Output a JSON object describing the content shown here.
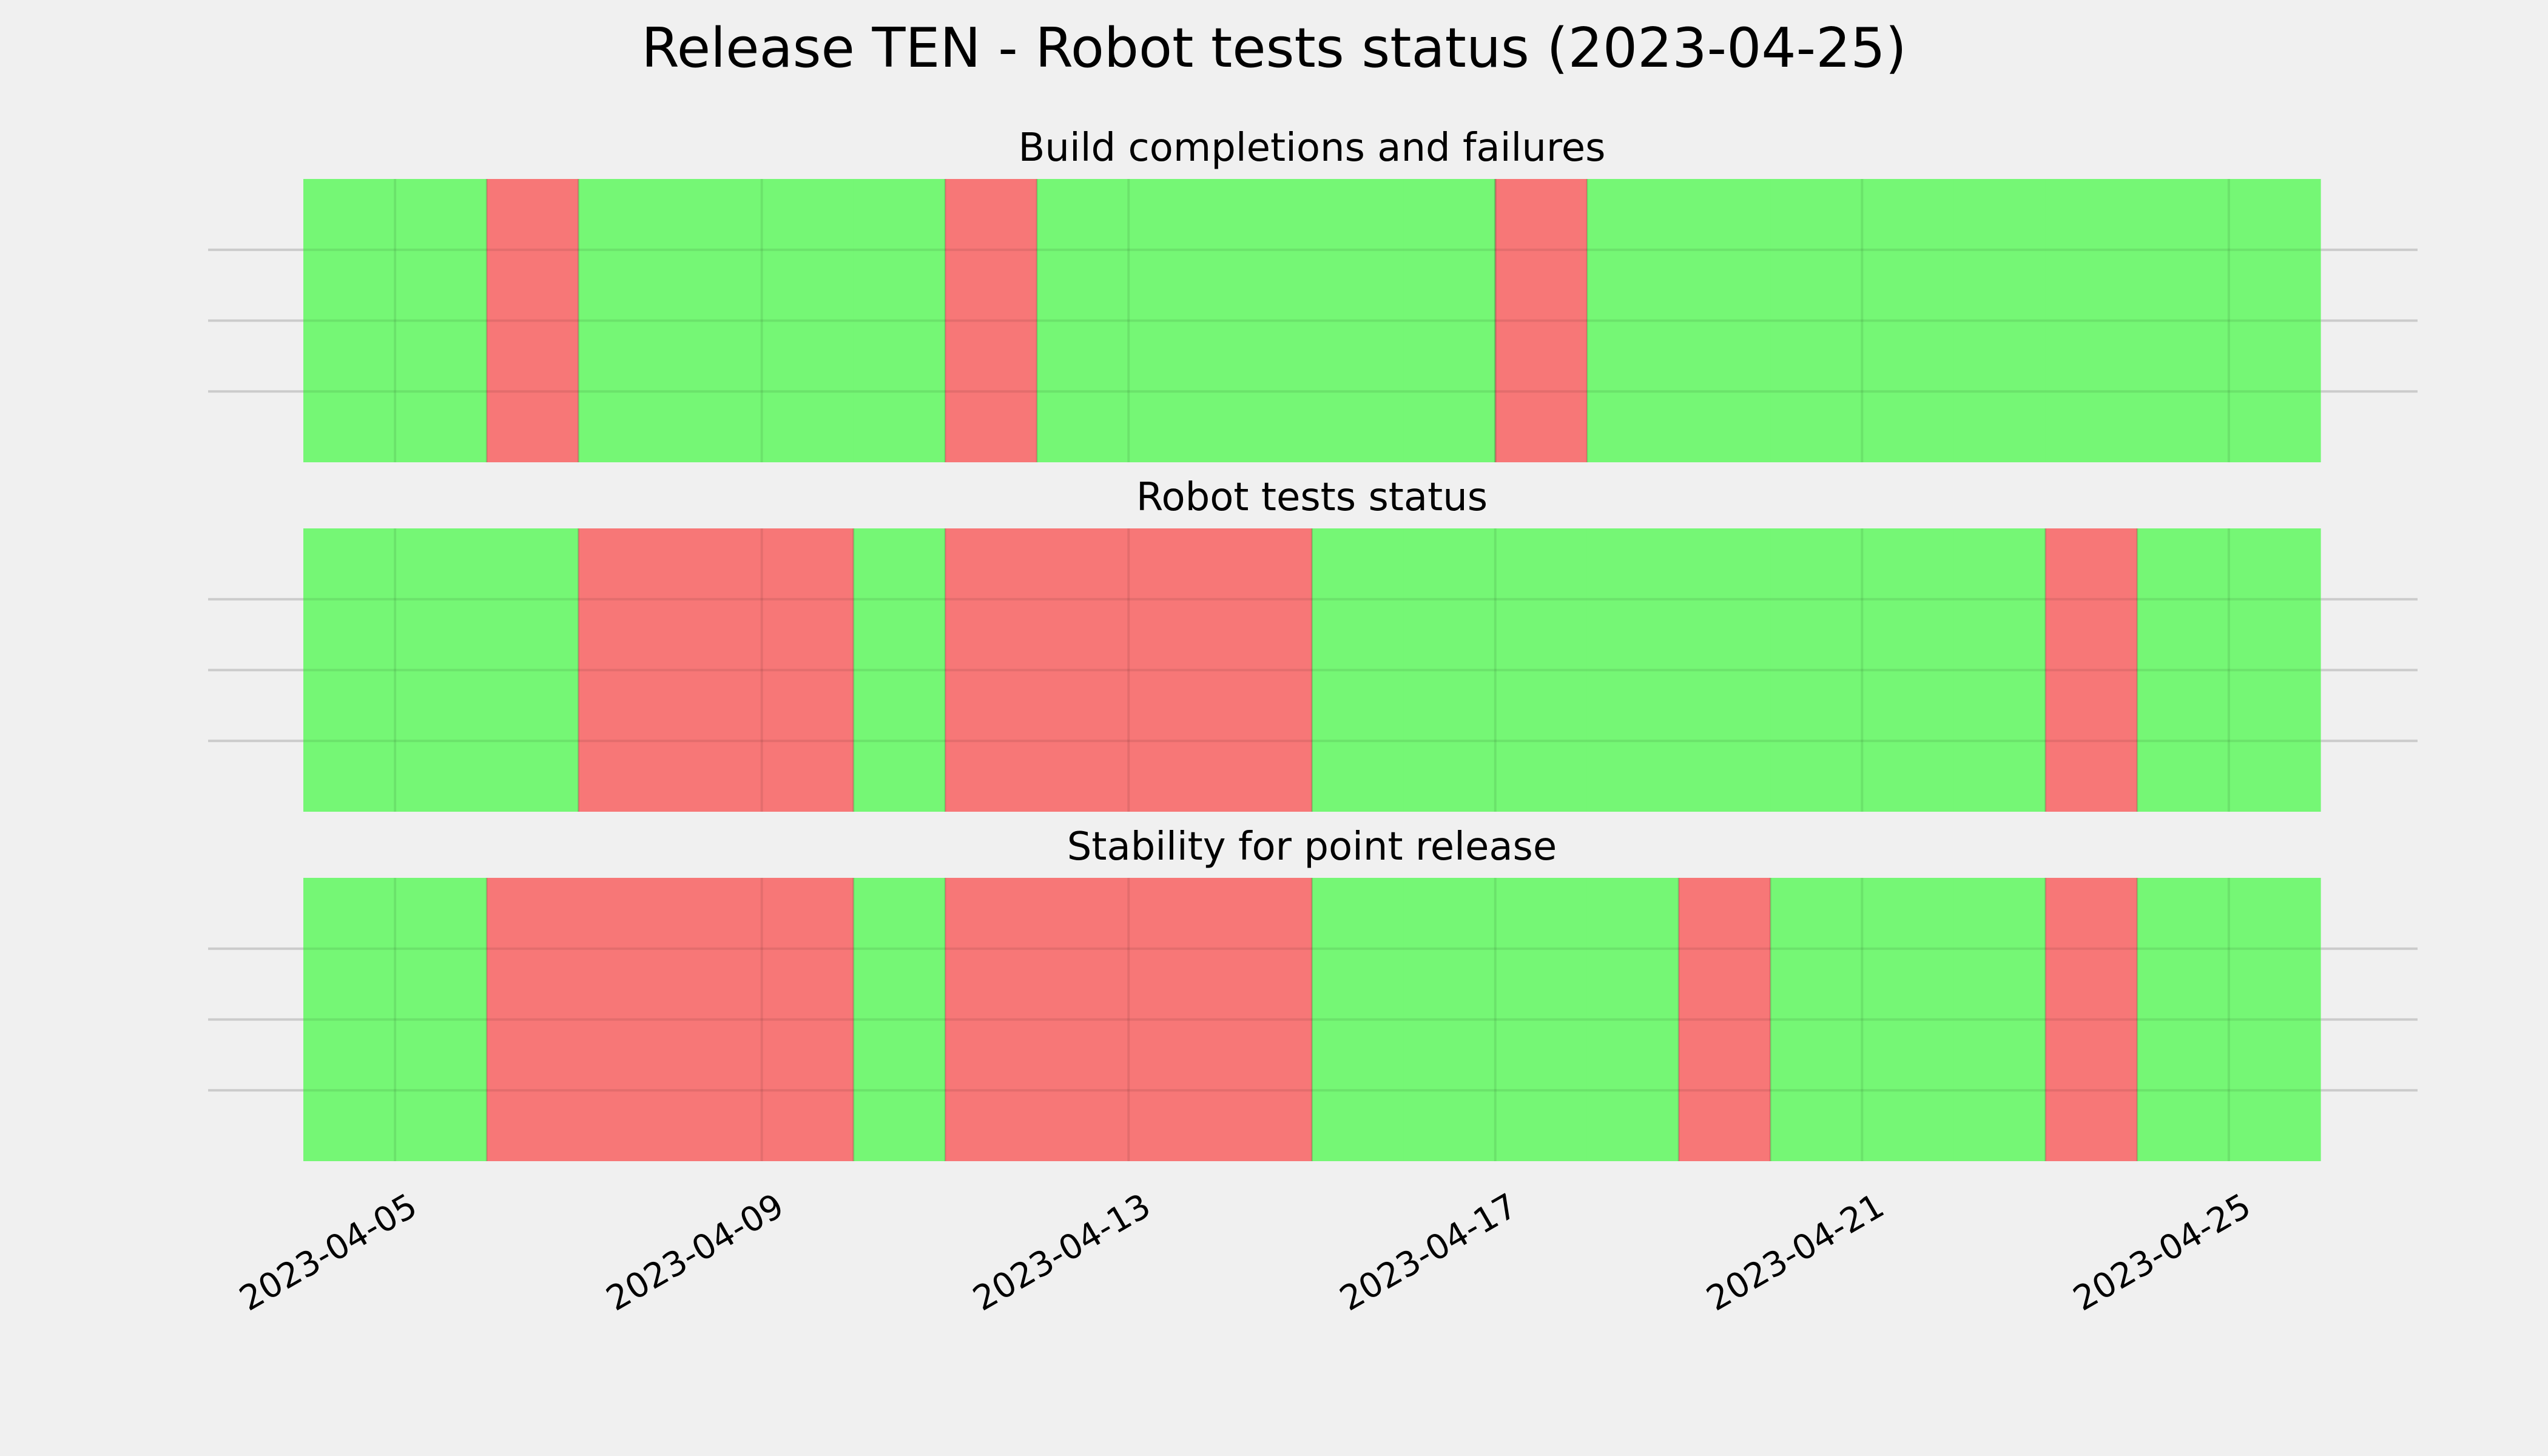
{
  "colors": {
    "background": "#f0f0f0",
    "ok": "#75f775",
    "fail": "#f77777",
    "grid": "#cbcbcb"
  },
  "chart_data": {
    "type": "timeline",
    "title": "Release TEN - Robot tests status (2023-04-25)",
    "x_axis": {
      "type": "date",
      "range": [
        "2023-04-04",
        "2023-04-26"
      ],
      "ticks": [
        "2023-04-05",
        "2023-04-09",
        "2023-04-13",
        "2023-04-17",
        "2023-04-21",
        "2023-04-25"
      ]
    },
    "grid": true,
    "panels": [
      {
        "title": "Build completions and failures",
        "days": [
          "pass",
          "pass",
          "fail",
          "pass",
          "pass",
          "pass",
          "pass",
          "fail",
          "pass",
          "pass",
          "pass",
          "pass",
          "pass",
          "fail",
          "pass",
          "pass",
          "pass",
          "pass",
          "pass",
          "pass",
          "pass",
          "pass"
        ]
      },
      {
        "title": "Robot tests status",
        "days": [
          "pass",
          "pass",
          "pass",
          "fail",
          "fail",
          "fail",
          "pass",
          "fail",
          "fail",
          "fail",
          "fail",
          "pass",
          "pass",
          "pass",
          "pass",
          "pass",
          "pass",
          "pass",
          "pass",
          "fail",
          "pass",
          "pass"
        ]
      },
      {
        "title": "Stability for point release",
        "days": [
          "pass",
          "pass",
          "fail",
          "fail",
          "fail",
          "fail",
          "pass",
          "fail",
          "fail",
          "fail",
          "fail",
          "pass",
          "pass",
          "pass",
          "pass",
          "fail",
          "pass",
          "pass",
          "pass",
          "fail",
          "pass",
          "pass"
        ]
      }
    ]
  }
}
